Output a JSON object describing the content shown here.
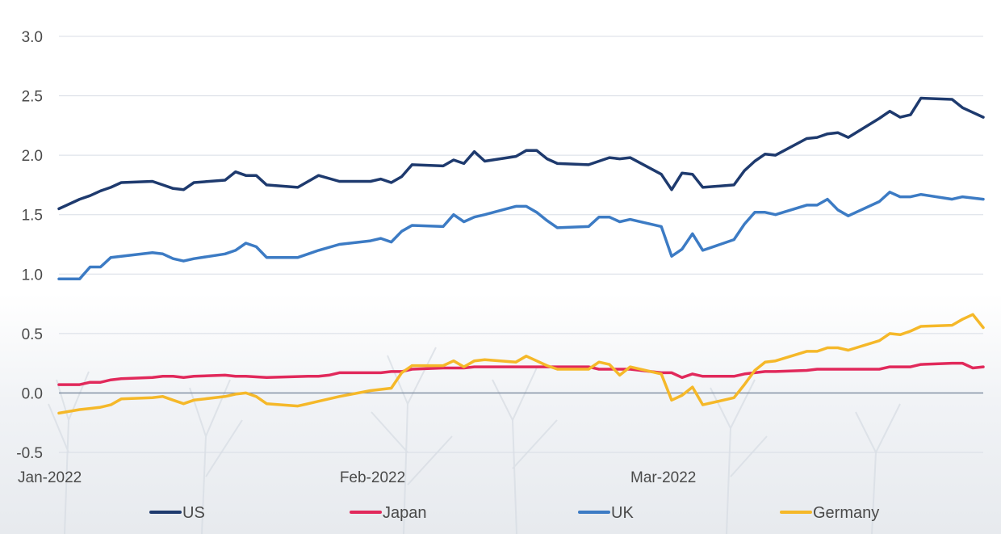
{
  "chart_data": {
    "type": "line",
    "ylim": [
      -0.5,
      3.0
    ],
    "y_ticks": [
      "3.0",
      "2.5",
      "2.0",
      "1.5",
      "1.0",
      "0.5",
      "0.0",
      "-0.5"
    ],
    "x_tick_labels": [
      {
        "label": "Jan-2022",
        "day": 0
      },
      {
        "label": "Feb-2022",
        "day": 31
      },
      {
        "label": "Mar-2022",
        "day": 59
      }
    ],
    "grid": true,
    "legend_position": "bottom",
    "series": [
      {
        "name": "US",
        "color": "#1e3a6e",
        "points": [
          [
            0,
            1.55
          ],
          [
            1,
            1.59
          ],
          [
            2,
            1.63
          ],
          [
            3,
            1.66
          ],
          [
            4,
            1.7
          ],
          [
            5,
            1.73
          ],
          [
            6,
            1.77
          ],
          [
            9,
            1.78
          ],
          [
            10,
            1.75
          ],
          [
            11,
            1.72
          ],
          [
            12,
            1.71
          ],
          [
            13,
            1.77
          ],
          [
            16,
            1.79
          ],
          [
            17,
            1.86
          ],
          [
            18,
            1.83
          ],
          [
            19,
            1.83
          ],
          [
            20,
            1.75
          ],
          [
            23,
            1.73
          ],
          [
            24,
            1.78
          ],
          [
            25,
            1.83
          ],
          [
            27,
            1.78
          ],
          [
            30,
            1.78
          ],
          [
            31,
            1.8
          ],
          [
            32,
            1.77
          ],
          [
            33,
            1.82
          ],
          [
            34,
            1.92
          ],
          [
            37,
            1.91
          ],
          [
            38,
            1.96
          ],
          [
            39,
            1.93
          ],
          [
            40,
            2.03
          ],
          [
            41,
            1.95
          ],
          [
            44,
            1.99
          ],
          [
            45,
            2.04
          ],
          [
            46,
            2.04
          ],
          [
            47,
            1.97
          ],
          [
            48,
            1.93
          ],
          [
            51,
            1.92
          ],
          [
            52,
            1.95
          ],
          [
            53,
            1.98
          ],
          [
            54,
            1.97
          ],
          [
            55,
            1.98
          ],
          [
            58,
            1.84
          ],
          [
            59,
            1.71
          ],
          [
            60,
            1.85
          ],
          [
            61,
            1.84
          ],
          [
            62,
            1.73
          ],
          [
            65,
            1.75
          ],
          [
            66,
            1.87
          ],
          [
            67,
            1.95
          ],
          [
            68,
            2.01
          ],
          [
            69,
            2.0
          ],
          [
            72,
            2.14
          ],
          [
            73,
            2.15
          ],
          [
            74,
            2.18
          ],
          [
            75,
            2.19
          ],
          [
            76,
            2.15
          ],
          [
            79,
            2.31
          ],
          [
            80,
            2.37
          ],
          [
            81,
            2.32
          ],
          [
            82,
            2.34
          ],
          [
            83,
            2.48
          ],
          [
            86,
            2.47
          ],
          [
            87,
            2.4
          ],
          [
            88,
            2.36
          ],
          [
            89,
            2.32
          ]
        ]
      },
      {
        "name": "Japan",
        "color": "#e1295b",
        "points": [
          [
            0,
            0.07
          ],
          [
            2,
            0.07
          ],
          [
            3,
            0.09
          ],
          [
            4,
            0.09
          ],
          [
            5,
            0.11
          ],
          [
            6,
            0.12
          ],
          [
            9,
            0.13
          ],
          [
            10,
            0.14
          ],
          [
            11,
            0.14
          ],
          [
            12,
            0.13
          ],
          [
            13,
            0.14
          ],
          [
            16,
            0.15
          ],
          [
            17,
            0.14
          ],
          [
            18,
            0.14
          ],
          [
            20,
            0.13
          ],
          [
            24,
            0.14
          ],
          [
            25,
            0.14
          ],
          [
            26,
            0.15
          ],
          [
            27,
            0.17
          ],
          [
            30,
            0.17
          ],
          [
            31,
            0.17
          ],
          [
            32,
            0.18
          ],
          [
            33,
            0.18
          ],
          [
            34,
            0.2
          ],
          [
            37,
            0.21
          ],
          [
            38,
            0.21
          ],
          [
            39,
            0.21
          ],
          [
            40,
            0.22
          ],
          [
            41,
            0.22
          ],
          [
            44,
            0.22
          ],
          [
            45,
            0.22
          ],
          [
            48,
            0.22
          ],
          [
            51,
            0.22
          ],
          [
            52,
            0.2
          ],
          [
            55,
            0.2
          ],
          [
            58,
            0.17
          ],
          [
            59,
            0.17
          ],
          [
            60,
            0.13
          ],
          [
            61,
            0.16
          ],
          [
            62,
            0.14
          ],
          [
            65,
            0.14
          ],
          [
            66,
            0.16
          ],
          [
            67,
            0.17
          ],
          [
            68,
            0.18
          ],
          [
            69,
            0.18
          ],
          [
            72,
            0.19
          ],
          [
            73,
            0.2
          ],
          [
            76,
            0.2
          ],
          [
            79,
            0.2
          ],
          [
            80,
            0.22
          ],
          [
            82,
            0.22
          ],
          [
            83,
            0.24
          ],
          [
            86,
            0.25
          ],
          [
            87,
            0.25
          ],
          [
            88,
            0.21
          ],
          [
            89,
            0.22
          ]
        ]
      },
      {
        "name": "UK",
        "color": "#3c7bc4",
        "points": [
          [
            0,
            0.96
          ],
          [
            2,
            0.96
          ],
          [
            3,
            1.06
          ],
          [
            4,
            1.06
          ],
          [
            5,
            1.14
          ],
          [
            6,
            1.15
          ],
          [
            9,
            1.18
          ],
          [
            10,
            1.17
          ],
          [
            11,
            1.13
          ],
          [
            12,
            1.11
          ],
          [
            13,
            1.13
          ],
          [
            16,
            1.17
          ],
          [
            17,
            1.2
          ],
          [
            18,
            1.26
          ],
          [
            19,
            1.23
          ],
          [
            20,
            1.14
          ],
          [
            23,
            1.14
          ],
          [
            24,
            1.17
          ],
          [
            25,
            1.2
          ],
          [
            27,
            1.25
          ],
          [
            30,
            1.28
          ],
          [
            31,
            1.3
          ],
          [
            32,
            1.27
          ],
          [
            33,
            1.36
          ],
          [
            34,
            1.41
          ],
          [
            37,
            1.4
          ],
          [
            38,
            1.5
          ],
          [
            39,
            1.44
          ],
          [
            40,
            1.48
          ],
          [
            41,
            1.5
          ],
          [
            44,
            1.57
          ],
          [
            45,
            1.57
          ],
          [
            46,
            1.52
          ],
          [
            47,
            1.45
          ],
          [
            48,
            1.39
          ],
          [
            51,
            1.4
          ],
          [
            52,
            1.48
          ],
          [
            53,
            1.48
          ],
          [
            54,
            1.44
          ],
          [
            55,
            1.46
          ],
          [
            58,
            1.4
          ],
          [
            59,
            1.15
          ],
          [
            60,
            1.21
          ],
          [
            61,
            1.34
          ],
          [
            62,
            1.2
          ],
          [
            65,
            1.29
          ],
          [
            66,
            1.42
          ],
          [
            67,
            1.52
          ],
          [
            68,
            1.52
          ],
          [
            69,
            1.5
          ],
          [
            72,
            1.58
          ],
          [
            73,
            1.58
          ],
          [
            74,
            1.63
          ],
          [
            75,
            1.54
          ],
          [
            76,
            1.49
          ],
          [
            79,
            1.61
          ],
          [
            80,
            1.69
          ],
          [
            81,
            1.65
          ],
          [
            82,
            1.65
          ],
          [
            83,
            1.67
          ],
          [
            86,
            1.63
          ],
          [
            87,
            1.65
          ],
          [
            88,
            1.64
          ],
          [
            89,
            1.63
          ]
        ]
      },
      {
        "name": "Germany",
        "color": "#f5b829",
        "points": [
          [
            0,
            -0.17
          ],
          [
            2,
            -0.14
          ],
          [
            3,
            -0.13
          ],
          [
            4,
            -0.12
          ],
          [
            5,
            -0.1
          ],
          [
            6,
            -0.05
          ],
          [
            9,
            -0.04
          ],
          [
            10,
            -0.03
          ],
          [
            11,
            -0.06
          ],
          [
            12,
            -0.09
          ],
          [
            13,
            -0.06
          ],
          [
            16,
            -0.03
          ],
          [
            17,
            -0.01
          ],
          [
            18,
            0.0
          ],
          [
            19,
            -0.03
          ],
          [
            20,
            -0.09
          ],
          [
            23,
            -0.11
          ],
          [
            24,
            -0.09
          ],
          [
            25,
            -0.07
          ],
          [
            27,
            -0.03
          ],
          [
            30,
            0.02
          ],
          [
            31,
            0.03
          ],
          [
            32,
            0.04
          ],
          [
            33,
            0.17
          ],
          [
            34,
            0.23
          ],
          [
            37,
            0.23
          ],
          [
            38,
            0.27
          ],
          [
            39,
            0.22
          ],
          [
            40,
            0.27
          ],
          [
            41,
            0.28
          ],
          [
            44,
            0.26
          ],
          [
            45,
            0.31
          ],
          [
            46,
            0.27
          ],
          [
            47,
            0.23
          ],
          [
            48,
            0.2
          ],
          [
            51,
            0.2
          ],
          [
            52,
            0.26
          ],
          [
            53,
            0.24
          ],
          [
            54,
            0.15
          ],
          [
            55,
            0.22
          ],
          [
            58,
            0.16
          ],
          [
            59,
            -0.06
          ],
          [
            60,
            -0.02
          ],
          [
            61,
            0.05
          ],
          [
            62,
            -0.1
          ],
          [
            65,
            -0.04
          ],
          [
            66,
            0.07
          ],
          [
            67,
            0.19
          ],
          [
            68,
            0.26
          ],
          [
            69,
            0.27
          ],
          [
            72,
            0.35
          ],
          [
            73,
            0.35
          ],
          [
            74,
            0.38
          ],
          [
            75,
            0.38
          ],
          [
            76,
            0.36
          ],
          [
            79,
            0.44
          ],
          [
            80,
            0.5
          ],
          [
            81,
            0.49
          ],
          [
            82,
            0.52
          ],
          [
            83,
            0.56
          ],
          [
            86,
            0.57
          ],
          [
            87,
            0.62
          ],
          [
            88,
            0.66
          ],
          [
            89,
            0.55
          ]
        ]
      }
    ]
  }
}
